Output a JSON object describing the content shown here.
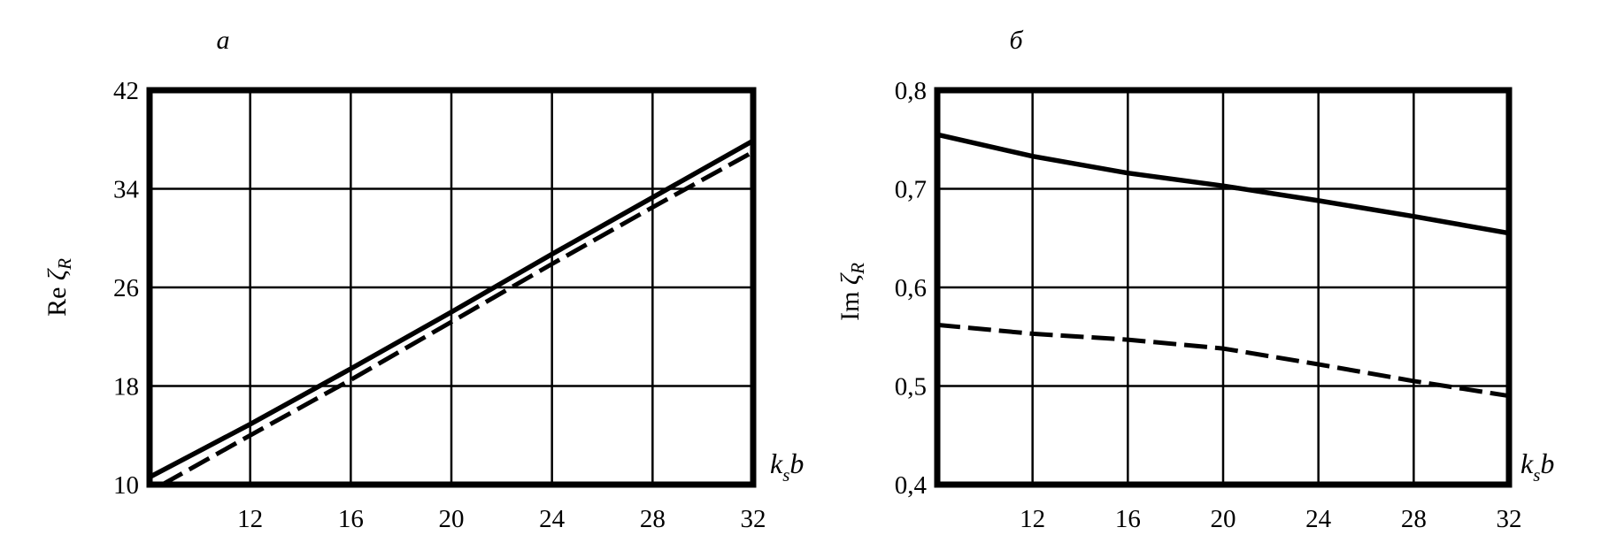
{
  "chart_data": [
    {
      "type": "line",
      "panel_label": "а",
      "ylabel_main": "Re",
      "ylabel_symbol": "ζ",
      "ylabel_sub": "R",
      "xlabel_main": "k",
      "xlabel_sub": "s",
      "xlabel_tail": "b",
      "xlim": [
        8,
        32
      ],
      "ylim": [
        10,
        42
      ],
      "xticks": [
        12,
        16,
        20,
        24,
        28,
        32
      ],
      "yticks": [
        10,
        18,
        26,
        34,
        42
      ],
      "xtick_labels": [
        "12",
        "16",
        "20",
        "24",
        "28",
        "32"
      ],
      "ytick_labels": [
        "10",
        "18",
        "26",
        "34",
        "42"
      ],
      "grid": true,
      "series": [
        {
          "style": "solid",
          "x": [
            8,
            12,
            16,
            20,
            24,
            28,
            32
          ],
          "y": [
            10.6,
            14.9,
            19.4,
            24.0,
            28.7,
            33.3,
            37.9
          ]
        },
        {
          "style": "dashed",
          "x": [
            8.5,
            12,
            16,
            20,
            24,
            28,
            32
          ],
          "y": [
            10.0,
            14.0,
            18.5,
            23.2,
            27.9,
            32.5,
            37.0
          ]
        }
      ]
    },
    {
      "type": "line",
      "panel_label": "б",
      "ylabel_main": "Im",
      "ylabel_symbol": "ζ",
      "ylabel_sub": "R",
      "xlabel_main": "k",
      "xlabel_sub": "s",
      "xlabel_tail": "b",
      "xlim": [
        8,
        32
      ],
      "ylim": [
        0.4,
        0.8
      ],
      "xticks": [
        12,
        16,
        20,
        24,
        28,
        32
      ],
      "yticks": [
        0.4,
        0.5,
        0.6,
        0.7,
        0.8
      ],
      "xtick_labels": [
        "12",
        "16",
        "20",
        "24",
        "28",
        "32"
      ],
      "ytick_labels": [
        "0,4",
        "0,5",
        "0,6",
        "0,7",
        "0,8"
      ],
      "grid": true,
      "series": [
        {
          "style": "solid",
          "x": [
            8,
            12,
            16,
            20,
            24,
            28,
            32
          ],
          "y": [
            0.755,
            0.733,
            0.716,
            0.703,
            0.688,
            0.672,
            0.655
          ]
        },
        {
          "style": "dashed",
          "x": [
            8,
            12,
            16,
            20,
            24,
            28,
            32
          ],
          "y": [
            0.562,
            0.553,
            0.547,
            0.538,
            0.522,
            0.505,
            0.49
          ]
        }
      ]
    }
  ]
}
